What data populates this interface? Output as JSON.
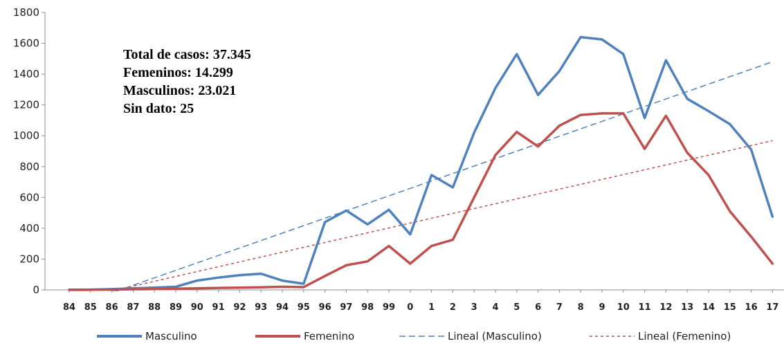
{
  "annotation": {
    "total": "Total de casos: 37.345",
    "femeninos": "Femeninos: 14.299",
    "masculinos": "Masculinos: 23.021",
    "sin_dato": "Sin dato: 25"
  },
  "chart_data": {
    "type": "line",
    "categories": [
      "84",
      "85",
      "86",
      "87",
      "88",
      "89",
      "90",
      "91",
      "92",
      "93",
      "94",
      "95",
      "96",
      "97",
      "98",
      "99",
      "0",
      "1",
      "2",
      "3",
      "4",
      "5",
      "6",
      "7",
      "8",
      "9",
      "10",
      "11",
      "12",
      "13",
      "14",
      "15",
      "16",
      "17"
    ],
    "ylim": [
      0,
      1800
    ],
    "yticks": [
      0,
      200,
      400,
      600,
      800,
      1000,
      1200,
      1400,
      1600,
      1800
    ],
    "grid": false,
    "legend_position": "bottom",
    "series": [
      {
        "name": "Masculino",
        "color": "#4F81BD",
        "style": "solid",
        "values": [
          1,
          2,
          5,
          10,
          15,
          20,
          60,
          80,
          95,
          105,
          60,
          40,
          440,
          515,
          425,
          520,
          360,
          745,
          665,
          1020,
          1310,
          1530,
          1265,
          1420,
          1640,
          1625,
          1530,
          1115,
          1490,
          1240,
          1160,
          1075,
          910,
          475
        ]
      },
      {
        "name": "Femenino",
        "color": "#C0504D",
        "style": "solid",
        "values": [
          0,
          1,
          2,
          4,
          6,
          8,
          10,
          13,
          15,
          17,
          20,
          18,
          90,
          160,
          185,
          285,
          170,
          285,
          325,
          600,
          875,
          1025,
          930,
          1065,
          1135,
          1145,
          1145,
          915,
          1130,
          890,
          745,
          510,
          345,
          170
        ]
      },
      {
        "name": "Lineal (Masculino)",
        "color": "#4F81BD",
        "style": "dashed",
        "trend_start": -115,
        "trend_end": 1480
      },
      {
        "name": "Lineal (Femenino)",
        "color": "#C0504D",
        "style": "dotted",
        "trend_start": -70,
        "trend_end": 968
      }
    ]
  }
}
